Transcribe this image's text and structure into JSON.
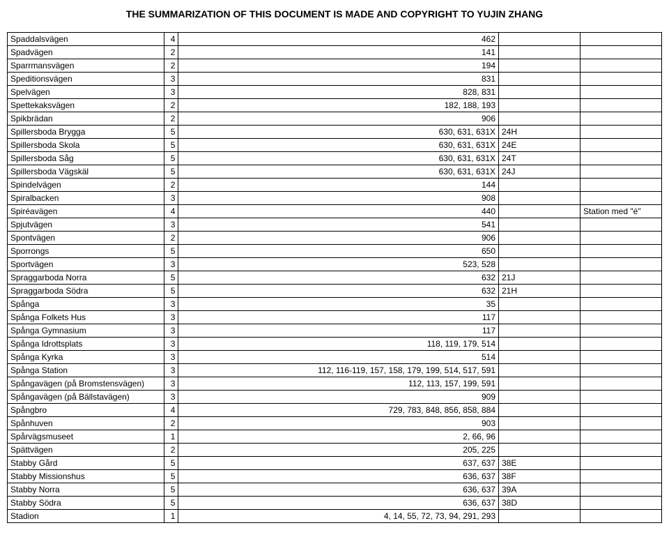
{
  "header": "THE SUMMARIZATION OF THIS DOCUMENT IS MADE AND COPYRIGHT TO YUJIN ZHANG",
  "columns": [
    {
      "key": "name",
      "align": "left"
    },
    {
      "key": "code",
      "align": "right"
    },
    {
      "key": "value",
      "align": "right"
    },
    {
      "key": "note1",
      "align": "left"
    },
    {
      "key": "note2",
      "align": "left"
    }
  ],
  "rows": [
    {
      "name": "Spaddalsvägen",
      "code": "4",
      "value": "462",
      "note1": "",
      "note2": ""
    },
    {
      "name": "Spadvägen",
      "code": "2",
      "value": "141",
      "note1": "",
      "note2": ""
    },
    {
      "name": "Sparrmansvägen",
      "code": "2",
      "value": "194",
      "note1": "",
      "note2": ""
    },
    {
      "name": "Speditionsvägen",
      "code": "3",
      "value": "831",
      "note1": "",
      "note2": ""
    },
    {
      "name": "Spelvägen",
      "code": "3",
      "value": "828, 831",
      "note1": "",
      "note2": ""
    },
    {
      "name": "Spettekaksvägen",
      "code": "2",
      "value": "182, 188, 193",
      "note1": "",
      "note2": ""
    },
    {
      "name": "Spikbrädan",
      "code": "2",
      "value": "906",
      "note1": "",
      "note2": ""
    },
    {
      "name": "Spillersboda Brygga",
      "code": "5",
      "value": "630, 631, 631X",
      "note1": "24H",
      "note2": ""
    },
    {
      "name": "Spillersboda Skola",
      "code": "5",
      "value": "630, 631, 631X",
      "note1": "24E",
      "note2": ""
    },
    {
      "name": "Spillersboda Såg",
      "code": "5",
      "value": "630, 631, 631X",
      "note1": "24T",
      "note2": ""
    },
    {
      "name": "Spillersboda Vägskäl",
      "code": "5",
      "value": "630, 631, 631X",
      "note1": "24J",
      "note2": ""
    },
    {
      "name": "Spindelvägen",
      "code": "2",
      "value": "144",
      "note1": "",
      "note2": ""
    },
    {
      "name": "Spiralbacken",
      "code": "3",
      "value": "908",
      "note1": "",
      "note2": ""
    },
    {
      "name": "Spiréavägen",
      "code": "4",
      "value": "440",
      "note1": "",
      "note2": "Station med \"é\""
    },
    {
      "name": "Spjutvägen",
      "code": "3",
      "value": "541",
      "note1": "",
      "note2": ""
    },
    {
      "name": "Spontvägen",
      "code": "2",
      "value": "906",
      "note1": "",
      "note2": ""
    },
    {
      "name": "Sporrongs",
      "code": "5",
      "value": "650",
      "note1": "",
      "note2": ""
    },
    {
      "name": "Sportvägen",
      "code": "3",
      "value": "523, 528",
      "note1": "",
      "note2": ""
    },
    {
      "name": "Spraggarboda Norra",
      "code": "5",
      "value": "632",
      "note1": "21J",
      "note2": ""
    },
    {
      "name": "Spraggarboda Södra",
      "code": "5",
      "value": "632",
      "note1": "21H",
      "note2": ""
    },
    {
      "name": "Spånga",
      "code": "3",
      "value": "35",
      "note1": "",
      "note2": ""
    },
    {
      "name": "Spånga Folkets Hus",
      "code": "3",
      "value": "117",
      "note1": "",
      "note2": ""
    },
    {
      "name": "Spånga Gymnasium",
      "code": "3",
      "value": "117",
      "note1": "",
      "note2": ""
    },
    {
      "name": "Spånga Idrottsplats",
      "code": "3",
      "value": "118, 119, 179, 514",
      "note1": "",
      "note2": ""
    },
    {
      "name": "Spånga Kyrka",
      "code": "3",
      "value": "514",
      "note1": "",
      "note2": ""
    },
    {
      "name": "Spånga Station",
      "code": "3",
      "value": "112, 116-119, 157, 158, 179, 199, 514, 517, 591",
      "note1": "",
      "note2": ""
    },
    {
      "name": "Spångavägen (på Bromstensvägen)",
      "code": "3",
      "value": "112, 113, 157, 199, 591",
      "note1": "",
      "note2": ""
    },
    {
      "name": "Spångavägen (på Bällstavägen)",
      "code": "3",
      "value": "909",
      "note1": "",
      "note2": ""
    },
    {
      "name": "Spångbro",
      "code": "4",
      "value": "729, 783, 848, 856, 858, 884",
      "note1": "",
      "note2": ""
    },
    {
      "name": "Spånhuven",
      "code": "2",
      "value": "903",
      "note1": "",
      "note2": ""
    },
    {
      "name": "Spårvägsmuseet",
      "code": "1",
      "value": "2, 66, 96",
      "note1": "",
      "note2": ""
    },
    {
      "name": "Spättvägen",
      "code": "2",
      "value": "205, 225",
      "note1": "",
      "note2": ""
    },
    {
      "name": "Stabby Gård",
      "code": "5",
      "value": "637, 637",
      "note1": "38E",
      "note2": ""
    },
    {
      "name": "Stabby Missionshus",
      "code": "5",
      "value": "636, 637",
      "note1": "38F",
      "note2": ""
    },
    {
      "name": "Stabby Norra",
      "code": "5",
      "value": "636, 637",
      "note1": "39A",
      "note2": ""
    },
    {
      "name": "Stabby Södra",
      "code": "5",
      "value": "636, 637",
      "note1": "38D",
      "note2": ""
    },
    {
      "name": "Stadion",
      "code": "1",
      "value": "4, 14, 55, 72, 73, 94, 291, 293",
      "note1": "",
      "note2": ""
    }
  ]
}
